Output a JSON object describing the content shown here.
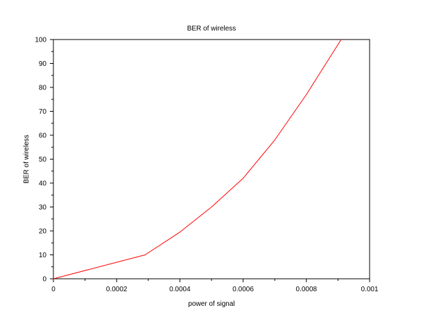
{
  "chart_data": {
    "type": "line",
    "title": "BER of wireless",
    "xlabel": "power of signal",
    "ylabel": "BER of wireless",
    "xlim": [
      0,
      0.001
    ],
    "ylim": [
      0,
      100
    ],
    "x_ticks": [
      "0",
      "0.0002",
      "0.0004",
      "0.0006",
      "0.0008",
      "0.001"
    ],
    "y_ticks": [
      "0",
      "10",
      "20",
      "30",
      "40",
      "50",
      "60",
      "70",
      "80",
      "90",
      "100"
    ],
    "grid": false,
    "series": [
      {
        "color": "#ff0000",
        "x": [
          0,
          0.00029,
          0.0004,
          0.0005,
          0.0006,
          0.0007,
          0.0008,
          0.00091
        ],
        "y": [
          0,
          10,
          19.5,
          30,
          42,
          58,
          77,
          100
        ]
      }
    ]
  }
}
